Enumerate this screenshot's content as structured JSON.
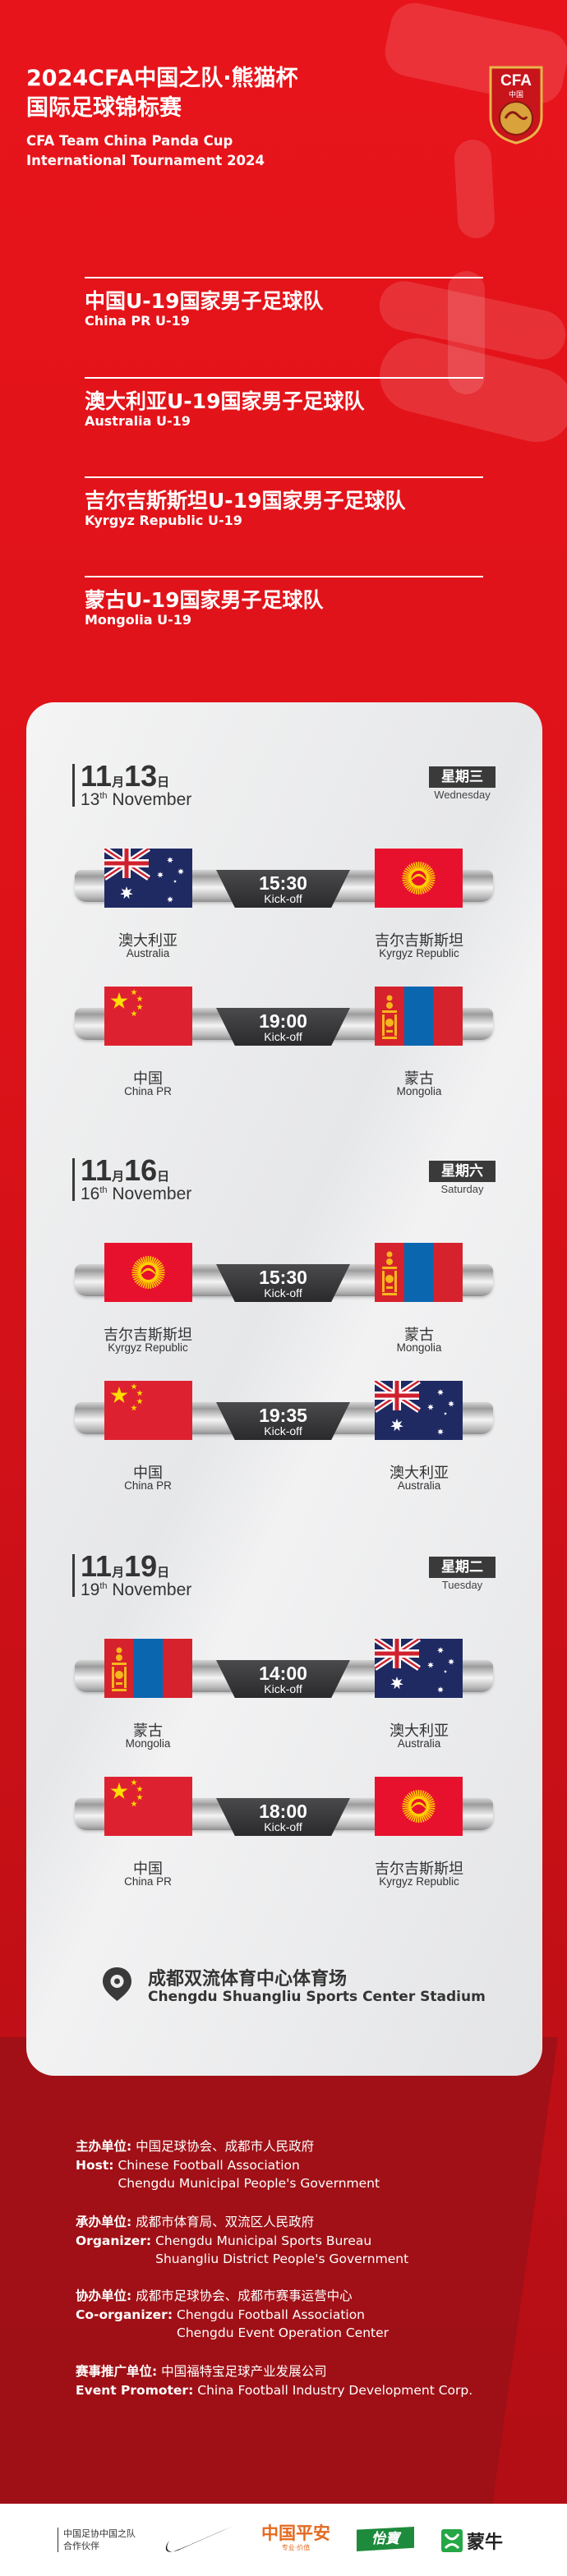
{
  "header": {
    "title_cn_line1": "2024CFA中国之队·熊猫杯",
    "title_cn_line2": "国际足球锦标赛",
    "title_en_line1": "CFA Team China Panda Cup",
    "title_en_line2": "International Tournament 2024",
    "logo": {
      "text": "CFA",
      "sub": "中国"
    }
  },
  "teams": [
    {
      "cn": "中国U-19国家男子足球队",
      "en": "China PR U-19"
    },
    {
      "cn": "澳大利亚U-19国家男子足球队",
      "en": "Australia U-19"
    },
    {
      "cn": "吉尔吉斯斯坦U-19国家男子足球队",
      "en": "Kyrgyz Republic U-19"
    },
    {
      "cn": "蒙古U-19国家男子足球队",
      "en": "Mongolia U-19"
    }
  ],
  "countries": {
    "AUS": {
      "cn": "澳大利亚",
      "en": "Australia"
    },
    "KGZ": {
      "cn": "吉尔吉斯斯坦",
      "en": "Kyrgyz Republic"
    },
    "CHN": {
      "cn": "中国",
      "en": "China PR"
    },
    "MGL": {
      "cn": "蒙古",
      "en": "Mongolia"
    }
  },
  "kickoff_label": "Kick-off",
  "schedule": [
    {
      "month": "11",
      "month_unit": "月",
      "day": "13",
      "day_unit": "日",
      "en_day": "13",
      "en_suffix": "th",
      "en_month": "November",
      "weekday_cn": "星期三",
      "weekday_en": "Wednesday",
      "matches": [
        {
          "home": "AUS",
          "away": "KGZ",
          "time": "15:30"
        },
        {
          "home": "CHN",
          "away": "MGL",
          "time": "19:00"
        }
      ]
    },
    {
      "month": "11",
      "month_unit": "月",
      "day": "16",
      "day_unit": "日",
      "en_day": "16",
      "en_suffix": "th",
      "en_month": "November",
      "weekday_cn": "星期六",
      "weekday_en": "Saturday",
      "matches": [
        {
          "home": "KGZ",
          "away": "MGL",
          "time": "15:30"
        },
        {
          "home": "CHN",
          "away": "AUS",
          "time": "19:35"
        }
      ]
    },
    {
      "month": "11",
      "month_unit": "月",
      "day": "19",
      "day_unit": "日",
      "en_day": "19",
      "en_suffix": "th",
      "en_month": "November",
      "weekday_cn": "星期二",
      "weekday_en": "Tuesday",
      "matches": [
        {
          "home": "MGL",
          "away": "AUS",
          "time": "14:00"
        },
        {
          "home": "CHN",
          "away": "KGZ",
          "time": "18:00"
        }
      ]
    }
  ],
  "venue": {
    "icon": "location-pin-icon",
    "cn": "成都双流体育中心体育场",
    "en": "Chengdu Shuangliu Sports Center Stadium"
  },
  "credits": [
    {
      "cn_label": "主办单位:",
      "cn_value": "中国足球协会、成都市人民政府",
      "en_label": "Host:",
      "en_values": [
        "Chinese Football Association",
        "Chengdu Municipal People's Government"
      ]
    },
    {
      "cn_label": "承办单位:",
      "cn_value": "成都市体育局、双流区人民政府",
      "en_label": "Organizer:",
      "en_values": [
        "Chengdu Municipal Sports Bureau",
        "Shuangliu District People's Government"
      ]
    },
    {
      "cn_label": "协办单位:",
      "cn_value": "成都市足球协会、成都市赛事运营中心",
      "en_label": "Co-organizer:",
      "en_values": [
        "Chengdu Football Association",
        "Chengdu Event Operation Center"
      ]
    },
    {
      "cn_label": "赛事推广单位:",
      "cn_value": "中国福特宝足球产业发展公司",
      "en_label": "Event Promoter:",
      "en_values": [
        "China Football Industry Development Corp."
      ]
    }
  ],
  "footer": {
    "partner_line1": "中国足协中国之队",
    "partner_line2": "合作伙伴",
    "sponsors": [
      {
        "name": "nike-logo"
      },
      {
        "name": "ping-an-logo",
        "text": "中国平安",
        "sub": "专业·价值"
      },
      {
        "name": "yibao-logo",
        "text": "怡寶"
      },
      {
        "name": "mengniu-logo",
        "text": "蒙牛"
      }
    ]
  },
  "colors": {
    "primary_red": "#e0131a",
    "dark_red": "#9b1016",
    "card": "#ececed",
    "dark_badge": "#3a3a3a",
    "gold": "#f2b21b"
  }
}
